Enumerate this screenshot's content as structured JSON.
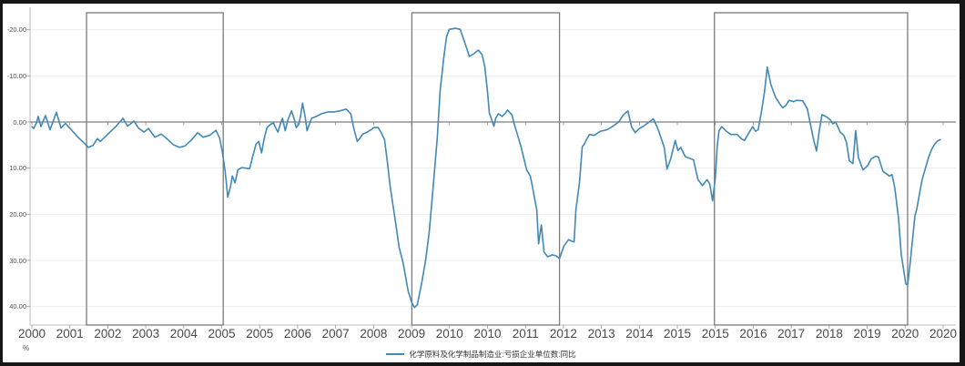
{
  "colors": {
    "series_line": "#4288b5",
    "zero_line": "#7d7d7d",
    "grid_line": "#ededed",
    "axis_line": "#bdbdbd",
    "highlight_box_border": "#7a7a7a",
    "frame_border": "#161616",
    "background": "#ffffff"
  },
  "chart_data": {
    "type": "line",
    "title": "",
    "grid": true,
    "legend": {
      "label": "化学原料及化学制品制造业:亏损企业单位数:同比",
      "position": "bottom-center"
    },
    "y_axis": {
      "unit": "%",
      "inverted": true,
      "tick_values": [
        -20,
        -10,
        0,
        10,
        20,
        30,
        40
      ],
      "tick_labels": [
        "-20.00",
        "-10.00",
        "0.00",
        "10.00",
        "20.00",
        "30.00",
        "40.00"
      ]
    },
    "x_axis": {
      "tick_labels": [
        "2000",
        "2001",
        "2002",
        "2003",
        "2004",
        "2005",
        "2005",
        "2006",
        "2007",
        "2008",
        "2009",
        "2010",
        "2010",
        "2011",
        "2012",
        "2013",
        "2014",
        "2015",
        "2015",
        "2016",
        "2017",
        "2018",
        "2019",
        "2020",
        "2020"
      ]
    },
    "highlight_boxes": [
      {
        "x_start_frac": 0.06,
        "x_end_frac": 0.21
      },
      {
        "x_start_frac": 0.417,
        "x_end_frac": 0.579
      },
      {
        "x_start_frac": 0.749,
        "x_end_frac": 0.961
      }
    ],
    "series": [
      {
        "name": "化学原料及化学制品制造业:亏损企业单位数:同比",
        "color": "#4288b5",
        "points": [
          [
            0.0,
            1.0
          ],
          [
            0.002,
            1.4
          ],
          [
            0.005,
            0.2
          ],
          [
            0.007,
            -1.2
          ],
          [
            0.01,
            1.0
          ],
          [
            0.013,
            -0.5
          ],
          [
            0.015,
            -1.4
          ],
          [
            0.02,
            1.7
          ],
          [
            0.023,
            0.0
          ],
          [
            0.027,
            -2.1
          ],
          [
            0.032,
            1.3
          ],
          [
            0.037,
            0.3
          ],
          [
            0.04,
            1.0
          ],
          [
            0.043,
            1.6
          ],
          [
            0.05,
            3.2
          ],
          [
            0.057,
            4.5
          ],
          [
            0.062,
            5.5
          ],
          [
            0.067,
            5.1
          ],
          [
            0.072,
            3.6
          ],
          [
            0.075,
            4.2
          ],
          [
            0.08,
            3.3
          ],
          [
            0.085,
            2.3
          ],
          [
            0.092,
            1.0
          ],
          [
            0.1,
            -0.8
          ],
          [
            0.105,
            0.9
          ],
          [
            0.112,
            -0.2
          ],
          [
            0.117,
            1.3
          ],
          [
            0.123,
            2.2
          ],
          [
            0.128,
            1.4
          ],
          [
            0.135,
            3.3
          ],
          [
            0.142,
            2.6
          ],
          [
            0.148,
            3.6
          ],
          [
            0.155,
            4.9
          ],
          [
            0.162,
            5.5
          ],
          [
            0.168,
            5.2
          ],
          [
            0.175,
            3.9
          ],
          [
            0.182,
            2.3
          ],
          [
            0.188,
            3.3
          ],
          [
            0.195,
            2.9
          ],
          [
            0.202,
            1.8
          ],
          [
            0.206,
            3.5
          ],
          [
            0.209,
            6.5
          ],
          [
            0.212,
            10.5
          ],
          [
            0.215,
            16.3
          ],
          [
            0.218,
            14.0
          ],
          [
            0.22,
            11.7
          ],
          [
            0.223,
            13.2
          ],
          [
            0.226,
            10.4
          ],
          [
            0.23,
            9.9
          ],
          [
            0.235,
            10.0
          ],
          [
            0.239,
            10.1
          ],
          [
            0.243,
            7.0
          ],
          [
            0.246,
            4.8
          ],
          [
            0.249,
            4.2
          ],
          [
            0.252,
            6.7
          ],
          [
            0.255,
            3.5
          ],
          [
            0.258,
            1.2
          ],
          [
            0.262,
            0.5
          ],
          [
            0.265,
            0.2
          ],
          [
            0.268,
            1.5
          ],
          [
            0.27,
            2.2
          ],
          [
            0.273,
            0.2
          ],
          [
            0.275,
            -0.8
          ],
          [
            0.278,
            1.9
          ],
          [
            0.281,
            -0.5
          ],
          [
            0.285,
            -2.4
          ],
          [
            0.288,
            -0.5
          ],
          [
            0.29,
            1.2
          ],
          [
            0.293,
            0.5
          ],
          [
            0.295,
            -1.5
          ],
          [
            0.297,
            -4.1
          ],
          [
            0.3,
            -1.0
          ],
          [
            0.302,
            1.9
          ],
          [
            0.305,
            0.2
          ],
          [
            0.307,
            -0.8
          ],
          [
            0.312,
            -1.2
          ],
          [
            0.318,
            -1.8
          ],
          [
            0.325,
            -2.2
          ],
          [
            0.332,
            -2.2
          ],
          [
            0.338,
            -2.4
          ],
          [
            0.345,
            -2.8
          ],
          [
            0.35,
            -1.8
          ],
          [
            0.353,
            1.2
          ],
          [
            0.357,
            4.2
          ],
          [
            0.36,
            3.5
          ],
          [
            0.363,
            2.6
          ],
          [
            0.368,
            2.2
          ],
          [
            0.372,
            1.7
          ],
          [
            0.375,
            1.2
          ],
          [
            0.38,
            1.2
          ],
          [
            0.383,
            2.2
          ],
          [
            0.387,
            3.8
          ],
          [
            0.39,
            8.5
          ],
          [
            0.393,
            13.7
          ],
          [
            0.397,
            19.0
          ],
          [
            0.4,
            23.0
          ],
          [
            0.403,
            27.2
          ],
          [
            0.407,
            30.2
          ],
          [
            0.41,
            33.4
          ],
          [
            0.413,
            36.7
          ],
          [
            0.417,
            39.2
          ],
          [
            0.42,
            40.2
          ],
          [
            0.423,
            39.6
          ],
          [
            0.428,
            34.7
          ],
          [
            0.432,
            30.1
          ],
          [
            0.436,
            24.0
          ],
          [
            0.44,
            15.0
          ],
          [
            0.443,
            8.0
          ],
          [
            0.445,
            3.2
          ],
          [
            0.448,
            -6.7
          ],
          [
            0.452,
            -14.0
          ],
          [
            0.455,
            -18.5
          ],
          [
            0.458,
            -20.1
          ],
          [
            0.465,
            -20.3
          ],
          [
            0.47,
            -20.1
          ],
          [
            0.475,
            -17.2
          ],
          [
            0.478,
            -15.5
          ],
          [
            0.48,
            -14.2
          ],
          [
            0.485,
            -14.8
          ],
          [
            0.49,
            -15.6
          ],
          [
            0.494,
            -14.6
          ],
          [
            0.497,
            -12.0
          ],
          [
            0.5,
            -6.6
          ],
          [
            0.502,
            -2.0
          ],
          [
            0.507,
            0.9
          ],
          [
            0.509,
            -0.8
          ],
          [
            0.512,
            -1.8
          ],
          [
            0.516,
            -1.2
          ],
          [
            0.52,
            -2.0
          ],
          [
            0.522,
            -2.6
          ],
          [
            0.527,
            -1.5
          ],
          [
            0.529,
            0.2
          ],
          [
            0.533,
            2.8
          ],
          [
            0.537,
            5.5
          ],
          [
            0.543,
            10.4
          ],
          [
            0.547,
            11.7
          ],
          [
            0.549,
            13.7
          ],
          [
            0.554,
            19.0
          ],
          [
            0.556,
            26.4
          ],
          [
            0.559,
            22.3
          ],
          [
            0.562,
            28.2
          ],
          [
            0.566,
            29.2
          ],
          [
            0.571,
            28.8
          ],
          [
            0.575,
            29.0
          ],
          [
            0.579,
            29.6
          ],
          [
            0.584,
            26.8
          ],
          [
            0.589,
            25.5
          ],
          [
            0.592,
            25.8
          ],
          [
            0.595,
            26.0
          ],
          [
            0.597,
            19.0
          ],
          [
            0.601,
            13.0
          ],
          [
            0.604,
            5.3
          ],
          [
            0.606,
            4.9
          ],
          [
            0.609,
            3.7
          ],
          [
            0.612,
            2.7
          ],
          [
            0.617,
            2.9
          ],
          [
            0.624,
            2.0
          ],
          [
            0.631,
            1.7
          ],
          [
            0.637,
            1.0
          ],
          [
            0.644,
            0.0
          ],
          [
            0.649,
            -1.5
          ],
          [
            0.654,
            -2.4
          ],
          [
            0.658,
            1.0
          ],
          [
            0.662,
            2.3
          ],
          [
            0.666,
            1.5
          ],
          [
            0.671,
            0.9
          ],
          [
            0.676,
            0.2
          ],
          [
            0.682,
            -0.7
          ],
          [
            0.686,
            1.0
          ],
          [
            0.689,
            2.6
          ],
          [
            0.694,
            5.6
          ],
          [
            0.697,
            10.2
          ],
          [
            0.701,
            8.0
          ],
          [
            0.704,
            5.6
          ],
          [
            0.706,
            4.0
          ],
          [
            0.709,
            6.2
          ],
          [
            0.712,
            5.5
          ],
          [
            0.717,
            7.5
          ],
          [
            0.722,
            7.9
          ],
          [
            0.726,
            8.2
          ],
          [
            0.731,
            12.5
          ],
          [
            0.736,
            13.8
          ],
          [
            0.741,
            12.5
          ],
          [
            0.744,
            13.5
          ],
          [
            0.747,
            17.1
          ],
          [
            0.75,
            12.0
          ],
          [
            0.752,
            5.3
          ],
          [
            0.754,
            1.9
          ],
          [
            0.757,
            1.0
          ],
          [
            0.762,
            2.0
          ],
          [
            0.767,
            2.7
          ],
          [
            0.774,
            2.7
          ],
          [
            0.779,
            3.7
          ],
          [
            0.782,
            4.0
          ],
          [
            0.786,
            2.6
          ],
          [
            0.791,
            1.0
          ],
          [
            0.794,
            2.0
          ],
          [
            0.797,
            1.7
          ],
          [
            0.801,
            -2.7
          ],
          [
            0.804,
            -6.6
          ],
          [
            0.807,
            -11.9
          ],
          [
            0.811,
            -8.1
          ],
          [
            0.816,
            -5.4
          ],
          [
            0.821,
            -3.8
          ],
          [
            0.824,
            -3.1
          ],
          [
            0.827,
            -3.5
          ],
          [
            0.831,
            -4.7
          ],
          [
            0.836,
            -4.4
          ],
          [
            0.839,
            -4.7
          ],
          [
            0.846,
            -4.6
          ],
          [
            0.851,
            -2.8
          ],
          [
            0.854,
            0.2
          ],
          [
            0.858,
            4.0
          ],
          [
            0.861,
            6.3
          ],
          [
            0.864,
            1.9
          ],
          [
            0.867,
            -1.6
          ],
          [
            0.872,
            -1.1
          ],
          [
            0.876,
            -0.5
          ],
          [
            0.879,
            0.4
          ],
          [
            0.882,
            0.0
          ],
          [
            0.887,
            2.2
          ],
          [
            0.891,
            2.9
          ],
          [
            0.894,
            4.5
          ],
          [
            0.897,
            8.4
          ],
          [
            0.901,
            9.0
          ],
          [
            0.904,
            1.9
          ],
          [
            0.907,
            7.7
          ],
          [
            0.912,
            10.4
          ],
          [
            0.917,
            9.5
          ],
          [
            0.921,
            8.0
          ],
          [
            0.926,
            7.4
          ],
          [
            0.929,
            7.6
          ],
          [
            0.934,
            10.7
          ],
          [
            0.941,
            11.7
          ],
          [
            0.944,
            11.4
          ],
          [
            0.947,
            14.3
          ],
          [
            0.951,
            20.9
          ],
          [
            0.954,
            28.8
          ],
          [
            0.959,
            35.1
          ],
          [
            0.961,
            35.3
          ],
          [
            0.964,
            30.1
          ],
          [
            0.967,
            24.2
          ],
          [
            0.969,
            20.3
          ],
          [
            0.971,
            18.9
          ],
          [
            0.974,
            15.6
          ],
          [
            0.977,
            12.4
          ],
          [
            0.981,
            9.7
          ],
          [
            0.984,
            7.7
          ],
          [
            0.987,
            6.1
          ],
          [
            0.991,
            4.7
          ],
          [
            0.994,
            4.1
          ],
          [
            0.997,
            3.8
          ]
        ]
      }
    ]
  }
}
